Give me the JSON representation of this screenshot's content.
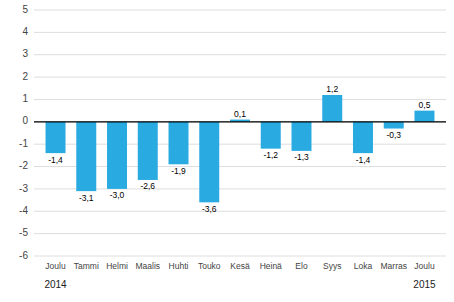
{
  "chart_data": {
    "type": "bar",
    "categories": [
      "Joulu",
      "Tammi",
      "Helmi",
      "Maalis",
      "Huhti",
      "Touko",
      "Kesä",
      "Heinä",
      "Elo",
      "Syys",
      "Loka",
      "Marras",
      "Joulu"
    ],
    "values": [
      -1.4,
      -3.1,
      -3.0,
      -2.6,
      -1.9,
      -3.6,
      0.1,
      -1.2,
      -1.3,
      1.2,
      -1.4,
      -0.3,
      0.5
    ],
    "value_labels": [
      "-1,4",
      "-3,1",
      "-3,0",
      "-2,6",
      "-1,9",
      "-3,6",
      "0,1",
      "-1,2",
      "-1,3",
      "1,2",
      "-1,4",
      "-0,3",
      "0,5"
    ],
    "data_labels": true,
    "color": "#29abe2",
    "ylim": [
      -6,
      5
    ],
    "yticks": [
      -6,
      -5,
      -4,
      -3,
      -2,
      -1,
      0,
      1,
      2,
      3,
      4,
      5
    ],
    "grid": true,
    "annotations": [
      {
        "text": "2014",
        "x": 0
      },
      {
        "text": "2015",
        "x": 12
      }
    ]
  }
}
